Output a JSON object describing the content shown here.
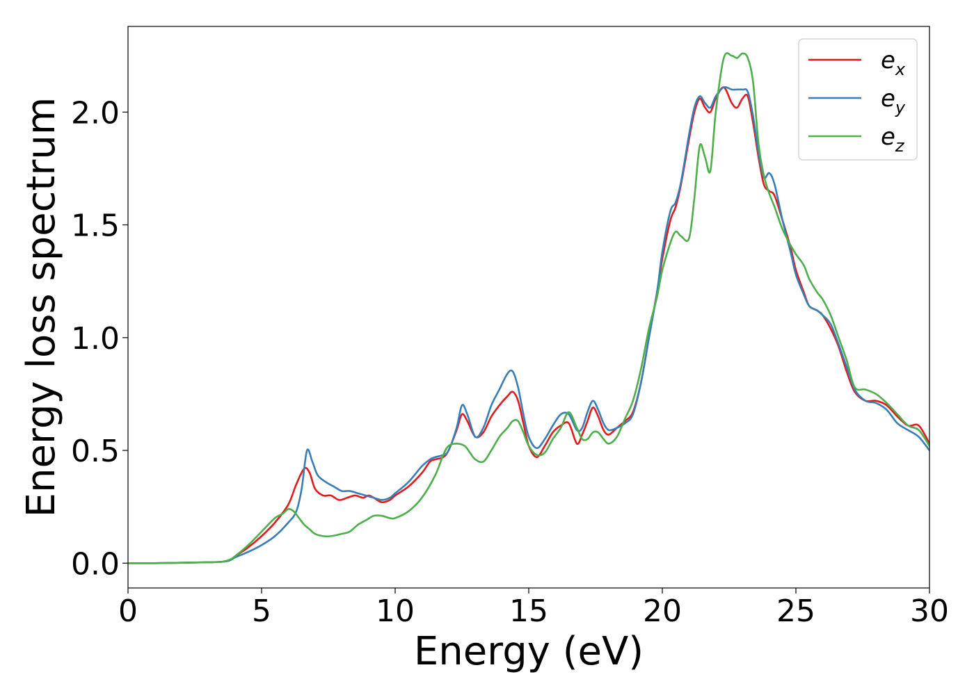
{
  "chart_data": {
    "type": "line",
    "title": "",
    "xlabel": "Energy (eV)",
    "ylabel": "Energy loss spectrum",
    "xlim": [
      0,
      30
    ],
    "ylim": [
      -0.11,
      2.38
    ],
    "xticks": [
      0,
      5,
      10,
      15,
      20,
      25,
      30
    ],
    "xtick_labels": [
      "0",
      "5",
      "10",
      "15",
      "20",
      "25",
      "30"
    ],
    "yticks": [
      0.0,
      0.5,
      1.0,
      1.5,
      2.0
    ],
    "ytick_labels": [
      "0.0",
      "0.5",
      "1.0",
      "1.5",
      "2.0"
    ],
    "grid": false,
    "legend_position": "top-right",
    "series": [
      {
        "name": "e",
        "subscript": "x",
        "color": "#e41a1c",
        "x": [
          0,
          1,
          2,
          3,
          3.5,
          3.8,
          4.0,
          4.5,
          5.0,
          5.5,
          6.0,
          6.3,
          6.6,
          6.8,
          7.0,
          7.3,
          7.6,
          7.9,
          8.2,
          8.5,
          8.8,
          9.0,
          9.2,
          9.5,
          9.8,
          10.0,
          10.5,
          11.0,
          11.3,
          11.5,
          11.8,
          12.0,
          12.3,
          12.5,
          12.7,
          13.0,
          13.3,
          13.6,
          13.9,
          14.2,
          14.4,
          14.6,
          14.8,
          15.0,
          15.3,
          15.6,
          15.9,
          16.2,
          16.5,
          16.8,
          17.0,
          17.2,
          17.4,
          17.6,
          17.8,
          18.0,
          18.3,
          18.6,
          18.9,
          19.2,
          19.5,
          19.8,
          20.0,
          20.3,
          20.5,
          20.7,
          21.0,
          21.2,
          21.4,
          21.6,
          21.8,
          22.0,
          22.3,
          22.6,
          22.8,
          23.0,
          23.2,
          23.4,
          23.6,
          23.8,
          24.0,
          24.2,
          24.5,
          24.8,
          25.0,
          25.3,
          25.5,
          25.8,
          26.0,
          26.3,
          26.6,
          26.9,
          27.2,
          27.6,
          28.0,
          28.4,
          28.8,
          29.2,
          29.6,
          30.0
        ],
        "y": [
          0.0,
          0.0,
          0.002,
          0.004,
          0.006,
          0.012,
          0.03,
          0.07,
          0.12,
          0.18,
          0.26,
          0.35,
          0.42,
          0.4,
          0.33,
          0.3,
          0.3,
          0.28,
          0.29,
          0.3,
          0.29,
          0.3,
          0.29,
          0.27,
          0.28,
          0.3,
          0.34,
          0.4,
          0.45,
          0.46,
          0.47,
          0.5,
          0.59,
          0.66,
          0.63,
          0.56,
          0.58,
          0.65,
          0.7,
          0.74,
          0.76,
          0.72,
          0.62,
          0.52,
          0.47,
          0.52,
          0.58,
          0.61,
          0.62,
          0.53,
          0.57,
          0.63,
          0.69,
          0.65,
          0.59,
          0.57,
          0.6,
          0.63,
          0.67,
          0.8,
          1.0,
          1.2,
          1.35,
          1.52,
          1.58,
          1.68,
          1.88,
          2.0,
          2.06,
          2.02,
          2.0,
          2.06,
          2.11,
          2.04,
          2.02,
          2.06,
          2.07,
          1.95,
          1.8,
          1.68,
          1.65,
          1.63,
          1.52,
          1.4,
          1.3,
          1.2,
          1.14,
          1.12,
          1.1,
          1.04,
          0.96,
          0.85,
          0.76,
          0.72,
          0.72,
          0.7,
          0.65,
          0.61,
          0.61,
          0.53
        ]
      },
      {
        "name": "e",
        "subscript": "y",
        "color": "#377eb8",
        "x": [
          0,
          1,
          2,
          3,
          3.5,
          3.8,
          4.0,
          4.5,
          5.0,
          5.5,
          6.0,
          6.3,
          6.5,
          6.7,
          6.9,
          7.1,
          7.4,
          7.7,
          8.0,
          8.3,
          8.6,
          8.9,
          9.2,
          9.5,
          9.8,
          10.0,
          10.5,
          11.0,
          11.3,
          11.5,
          11.8,
          12.0,
          12.3,
          12.5,
          12.7,
          13.0,
          13.3,
          13.6,
          13.9,
          14.2,
          14.4,
          14.6,
          14.8,
          15.0,
          15.3,
          15.6,
          15.9,
          16.2,
          16.5,
          16.8,
          17.0,
          17.2,
          17.4,
          17.6,
          17.8,
          18.0,
          18.3,
          18.6,
          18.9,
          19.2,
          19.5,
          19.8,
          20.0,
          20.3,
          20.5,
          20.7,
          21.0,
          21.2,
          21.4,
          21.6,
          21.8,
          22.0,
          22.3,
          22.6,
          22.8,
          23.0,
          23.2,
          23.4,
          23.6,
          23.8,
          24.0,
          24.2,
          24.5,
          24.8,
          25.0,
          25.3,
          25.5,
          25.8,
          26.0,
          26.3,
          26.6,
          26.9,
          27.2,
          27.6,
          28.0,
          28.4,
          28.8,
          29.2,
          29.6,
          30.0
        ],
        "y": [
          0.0,
          0.0,
          0.002,
          0.004,
          0.006,
          0.012,
          0.025,
          0.05,
          0.08,
          0.12,
          0.18,
          0.23,
          0.33,
          0.5,
          0.45,
          0.39,
          0.36,
          0.34,
          0.32,
          0.32,
          0.31,
          0.3,
          0.29,
          0.28,
          0.29,
          0.31,
          0.36,
          0.43,
          0.46,
          0.47,
          0.48,
          0.5,
          0.6,
          0.7,
          0.66,
          0.56,
          0.6,
          0.7,
          0.77,
          0.84,
          0.85,
          0.78,
          0.66,
          0.56,
          0.51,
          0.55,
          0.61,
          0.66,
          0.66,
          0.59,
          0.6,
          0.67,
          0.72,
          0.68,
          0.62,
          0.59,
          0.6,
          0.62,
          0.66,
          0.8,
          1.0,
          1.2,
          1.38,
          1.56,
          1.6,
          1.69,
          1.9,
          2.02,
          2.07,
          2.04,
          2.02,
          2.07,
          2.11,
          2.1,
          2.1,
          2.1,
          2.09,
          1.98,
          1.82,
          1.71,
          1.73,
          1.68,
          1.52,
          1.38,
          1.28,
          1.19,
          1.14,
          1.12,
          1.1,
          1.06,
          0.97,
          0.87,
          0.77,
          0.72,
          0.71,
          0.68,
          0.62,
          0.59,
          0.56,
          0.5
        ]
      },
      {
        "name": "e",
        "subscript": "z",
        "color": "#4daf4a",
        "x": [
          0,
          1,
          2,
          3,
          3.5,
          3.8,
          4.0,
          4.5,
          5.0,
          5.5,
          5.8,
          6.0,
          6.2,
          6.4,
          6.6,
          6.8,
          7.0,
          7.3,
          7.6,
          8.0,
          8.3,
          8.6,
          8.9,
          9.2,
          9.5,
          9.8,
          10.0,
          10.5,
          11.0,
          11.5,
          11.8,
          12.0,
          12.3,
          12.6,
          12.8,
          13.0,
          13.3,
          13.6,
          13.9,
          14.2,
          14.4,
          14.6,
          14.8,
          15.0,
          15.3,
          15.6,
          15.9,
          16.2,
          16.5,
          16.8,
          17.0,
          17.2,
          17.4,
          17.6,
          17.8,
          18.0,
          18.3,
          18.6,
          18.9,
          19.2,
          19.5,
          19.8,
          20.0,
          20.3,
          20.5,
          20.7,
          21.0,
          21.2,
          21.4,
          21.6,
          21.8,
          22.0,
          22.3,
          22.6,
          22.8,
          23.0,
          23.2,
          23.4,
          23.6,
          23.8,
          24.0,
          24.2,
          24.5,
          24.8,
          25.0,
          25.3,
          25.5,
          25.8,
          26.0,
          26.3,
          26.6,
          26.9,
          27.2,
          27.6,
          28.0,
          28.4,
          28.8,
          29.2,
          29.6,
          30.0
        ],
        "y": [
          0.0,
          0.0,
          0.002,
          0.004,
          0.006,
          0.015,
          0.03,
          0.08,
          0.14,
          0.2,
          0.22,
          0.24,
          0.23,
          0.2,
          0.17,
          0.15,
          0.13,
          0.12,
          0.12,
          0.13,
          0.14,
          0.17,
          0.19,
          0.21,
          0.21,
          0.2,
          0.2,
          0.23,
          0.29,
          0.39,
          0.48,
          0.52,
          0.53,
          0.52,
          0.49,
          0.46,
          0.45,
          0.5,
          0.56,
          0.6,
          0.63,
          0.63,
          0.58,
          0.52,
          0.48,
          0.49,
          0.55,
          0.6,
          0.67,
          0.6,
          0.55,
          0.55,
          0.58,
          0.58,
          0.55,
          0.53,
          0.56,
          0.64,
          0.72,
          0.86,
          1.04,
          1.18,
          1.3,
          1.42,
          1.47,
          1.45,
          1.44,
          1.62,
          1.85,
          1.8,
          1.74,
          2.0,
          2.24,
          2.25,
          2.24,
          2.26,
          2.24,
          2.13,
          1.86,
          1.72,
          1.64,
          1.58,
          1.48,
          1.41,
          1.37,
          1.32,
          1.26,
          1.2,
          1.17,
          1.1,
          1.0,
          0.9,
          0.78,
          0.77,
          0.75,
          0.71,
          0.66,
          0.61,
          0.59,
          0.52
        ]
      }
    ]
  }
}
